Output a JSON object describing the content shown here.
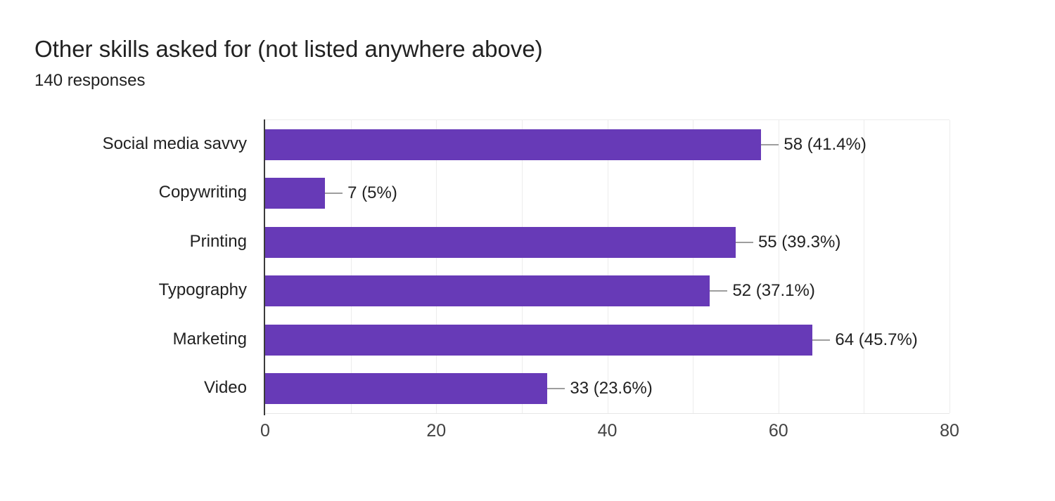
{
  "chart_data": {
    "type": "bar",
    "orientation": "horizontal",
    "title": "Other skills asked for (not listed anywhere above)",
    "subtitle": "140 responses",
    "total_responses": 140,
    "categories": [
      "Social media savvy",
      "Copywriting",
      "Printing",
      "Typography",
      "Marketing",
      "Video"
    ],
    "values": [
      58,
      7,
      55,
      52,
      64,
      33
    ],
    "value_labels": [
      "58 (41.4%)",
      "7 (5%)",
      "55 (39.3%)",
      "52 (37.1%)",
      "64 (45.7%)",
      "33 (23.6%)"
    ],
    "xlim": [
      0,
      80
    ],
    "x_ticks": [
      0,
      20,
      40,
      60,
      80
    ],
    "grid_step": 10,
    "grid": "on",
    "legend": "none",
    "colors": {
      "bar": "#673ab7",
      "gridline": "#ececec",
      "axis_line": "#3b3b3b",
      "connector": "#9e9e9e",
      "title_text": "#212121",
      "label_text": "#212121",
      "tick_text": "#424242",
      "background": "#ffffff"
    }
  }
}
